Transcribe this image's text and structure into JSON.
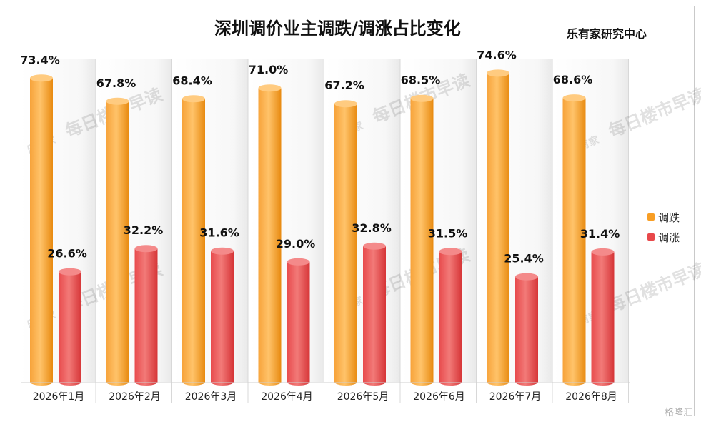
{
  "title": "深圳调价业主调跌/调涨占比变化",
  "source": "乐有家研究中心",
  "watermark_text": "每日楼市早读",
  "watermark_logo": "乐有家",
  "corner_mark": "格隆汇",
  "colors": {
    "down": "#F89E24",
    "up": "#E8484A",
    "frame": "#c9c9c9"
  },
  "chart_data": {
    "type": "bar",
    "categories": [
      "2026年1月",
      "2026年2月",
      "2026年3月",
      "2026年4月",
      "2026年5月",
      "2026年6月",
      "2026年7月",
      "2026年8月"
    ],
    "series": [
      {
        "name": "调跌",
        "values": [
          73.4,
          67.8,
          68.4,
          71.0,
          67.2,
          68.5,
          74.6,
          68.6
        ],
        "labels": [
          "73.4%",
          "67.8%",
          "68.4%",
          "71.0%",
          "67.2%",
          "68.5%",
          "74.6%",
          "68.6%"
        ]
      },
      {
        "name": "调涨",
        "values": [
          26.6,
          32.2,
          31.6,
          29.0,
          32.8,
          31.5,
          25.4,
          31.4
        ],
        "labels": [
          "26.6%",
          "32.2%",
          "31.6%",
          "29.0%",
          "32.8%",
          "31.5%",
          "25.4%",
          "31.4%"
        ]
      }
    ],
    "ylim": [
      0,
      100
    ],
    "grid": false,
    "legend": "right"
  }
}
